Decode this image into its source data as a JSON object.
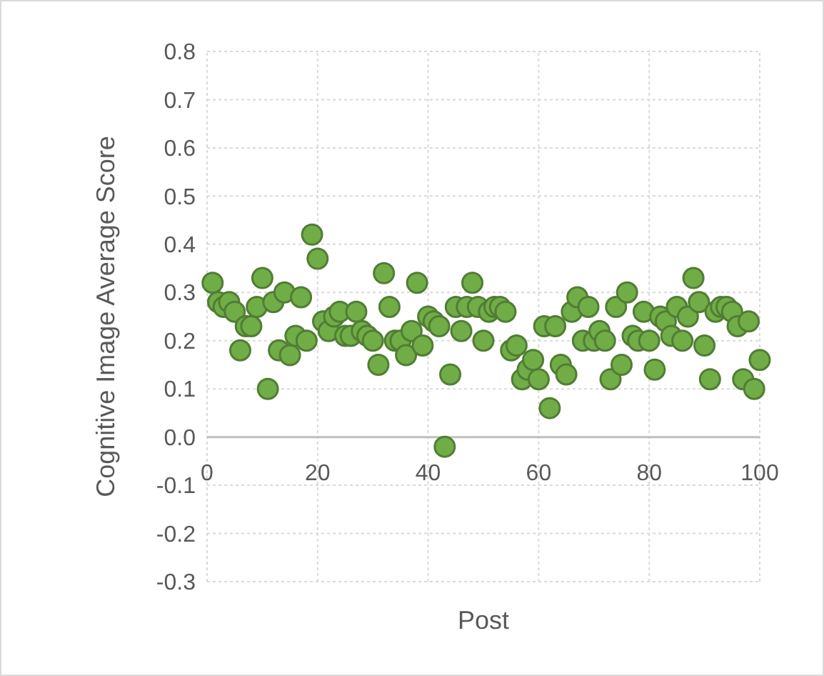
{
  "chart_data": {
    "type": "scatter",
    "xlabel": "Post",
    "ylabel": "Cognitive Image Average Score",
    "xlim": [
      0,
      100
    ],
    "xticks": [
      0,
      20,
      40,
      60,
      80,
      100
    ],
    "ylim": [
      -0.3,
      0.8
    ],
    "yticks": [
      {
        "value": -0.3,
        "label": "-0.3"
      },
      {
        "value": -0.2,
        "label": "-0.2"
      },
      {
        "value": -0.1,
        "label": "-0.1"
      },
      {
        "value": 0,
        "label": "0.0"
      },
      {
        "value": 0.1,
        "label": "0.1"
      },
      {
        "value": 0.2,
        "label": "0.2"
      },
      {
        "value": 0.3,
        "label": "0.3"
      },
      {
        "value": 0.4,
        "label": "0.4"
      },
      {
        "value": 0.5,
        "label": "0.5"
      },
      {
        "value": 0.6,
        "label": "0.6"
      },
      {
        "value": 0.7,
        "label": "0.7"
      },
      {
        "value": 0.8,
        "label": "0.8"
      }
    ],
    "grid": true,
    "marker": "circle",
    "series": [
      {
        "color": "#70ad47",
        "x": [
          1,
          2,
          3,
          4,
          5,
          6,
          7,
          8,
          9,
          10,
          11,
          12,
          13,
          14,
          15,
          16,
          17,
          18,
          19,
          20,
          21,
          22,
          23,
          24,
          25,
          26,
          27,
          28,
          29,
          30,
          31,
          32,
          33,
          34,
          35,
          36,
          37,
          38,
          39,
          40,
          41,
          42,
          43,
          44,
          45,
          46,
          47,
          48,
          49,
          50,
          51,
          52,
          53,
          54,
          55,
          56,
          57,
          58,
          59,
          60,
          61,
          62,
          63,
          64,
          65,
          66,
          67,
          68,
          69,
          70,
          71,
          72,
          73,
          74,
          75,
          76,
          77,
          78,
          79,
          80,
          81,
          82,
          83,
          84,
          85,
          86,
          87,
          88,
          89,
          90,
          91,
          92,
          93,
          94,
          95,
          96,
          97,
          98,
          99,
          100
        ],
        "values": [
          0.32,
          0.28,
          0.27,
          0.28,
          0.26,
          0.18,
          0.23,
          0.23,
          0.27,
          0.33,
          0.1,
          0.28,
          0.18,
          0.3,
          0.17,
          0.21,
          0.29,
          0.2,
          0.42,
          0.37,
          0.24,
          0.22,
          0.25,
          0.26,
          0.21,
          0.21,
          0.26,
          0.22,
          0.21,
          0.2,
          0.15,
          0.34,
          0.27,
          0.2,
          0.2,
          0.17,
          0.22,
          0.32,
          0.19,
          0.25,
          0.24,
          0.23,
          -0.02,
          0.13,
          0.27,
          0.22,
          0.27,
          0.32,
          0.27,
          0.2,
          0.26,
          0.27,
          0.27,
          0.26,
          0.18,
          0.19,
          0.12,
          0.14,
          0.16,
          0.12,
          0.23,
          0.06,
          0.23,
          0.15,
          0.13,
          0.26,
          0.29,
          0.2,
          0.27,
          0.2,
          0.22,
          0.2,
          0.12,
          0.27,
          0.15,
          0.3,
          0.21,
          0.2,
          0.26,
          0.2,
          0.14,
          0.25,
          0.24,
          0.21,
          0.27,
          0.2,
          0.25,
          0.33,
          0.28,
          0.19,
          0.12,
          0.26,
          0.27,
          0.27,
          0.26,
          0.23,
          0.12,
          0.24,
          0.1,
          0.16
        ]
      }
    ]
  }
}
